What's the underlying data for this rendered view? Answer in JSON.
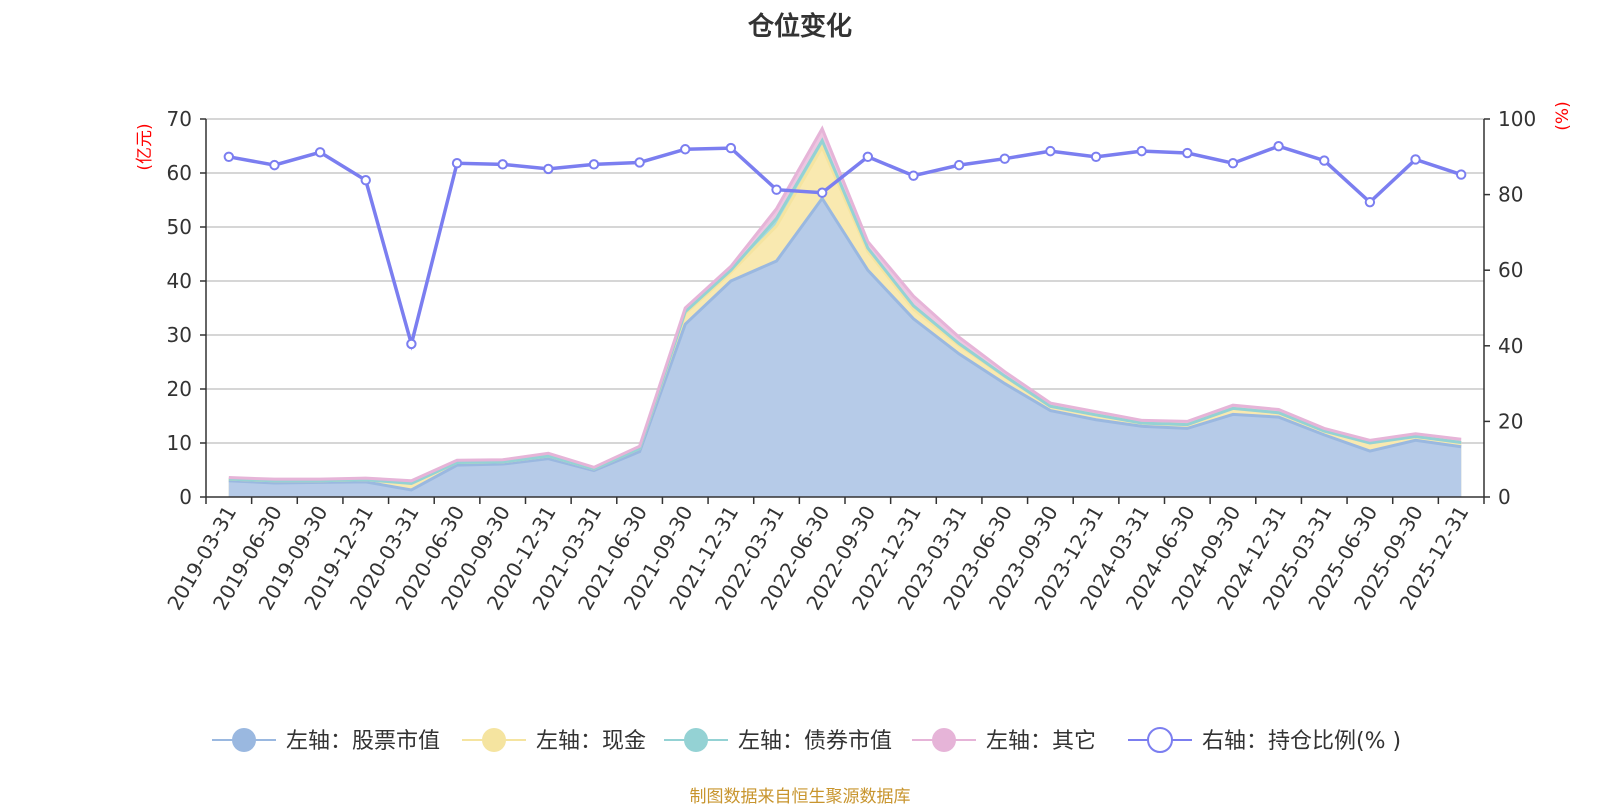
{
  "title": "仓位变化",
  "source_note": "制图数据来自恒生聚源数据库",
  "chart_data": {
    "type": "area",
    "title": "仓位变化",
    "left_axis_unit": "(亿元)",
    "right_axis_unit": "(%)",
    "left_ylim": [
      0,
      70
    ],
    "left_ticks": [
      0,
      10,
      20,
      30,
      40,
      50,
      60,
      70
    ],
    "right_ylim": [
      0,
      100
    ],
    "right_ticks": [
      0,
      20,
      40,
      60,
      80,
      100
    ],
    "grid": true,
    "legend_position": "bottom",
    "categories": [
      "2019-03-31",
      "2019-06-30",
      "2019-09-30",
      "2019-12-31",
      "2020-03-31",
      "2020-06-30",
      "2020-09-30",
      "2020-12-31",
      "2021-03-31",
      "2021-06-30",
      "2021-09-30",
      "2021-12-31",
      "2022-03-31",
      "2022-06-30",
      "2022-09-30",
      "2022-12-31",
      "2023-03-31",
      "2023-06-30",
      "2023-09-30",
      "2023-12-31",
      "2024-03-31",
      "2024-06-30",
      "2024-09-30",
      "2024-12-31",
      "2025-03-31",
      "2025-06-30",
      "2025-09-30",
      "2025-12-31"
    ],
    "series": [
      {
        "name": "左轴：股票市值",
        "axis": "left",
        "color": "#9ab8e0",
        "fill": "#b6cbe8",
        "values": [
          3.0,
          2.6,
          2.7,
          2.8,
          1.3,
          5.9,
          6.1,
          7.1,
          4.9,
          8.4,
          32.0,
          40.0,
          43.7,
          55.3,
          42.0,
          33.0,
          26.5,
          21.0,
          16.0,
          14.3,
          13.1,
          12.7,
          15.3,
          14.8,
          11.5,
          8.5,
          10.5,
          9.3
        ]
      },
      {
        "name": "左轴：现金",
        "axis": "left",
        "color": "#f5e4a0",
        "fill": "#f9e9b0",
        "values": [
          0.3,
          0.4,
          0.3,
          0.4,
          1.2,
          0.5,
          0.4,
          0.5,
          0.3,
          0.6,
          2.0,
          1.6,
          6.5,
          9.5,
          3.5,
          1.8,
          1.6,
          1.3,
          0.8,
          0.9,
          0.6,
          0.7,
          1.1,
          0.8,
          0.7,
          1.5,
          0.7,
          0.8
        ]
      },
      {
        "name": "左轴：债券市值",
        "axis": "left",
        "color": "#94d2d4",
        "fill": "#a8dcdd",
        "values": [
          0.0,
          0.0,
          0.0,
          0.0,
          0.0,
          0.0,
          0.0,
          0.0,
          0.0,
          0.0,
          0.3,
          0.4,
          1.4,
          1.2,
          0.6,
          0.6,
          0.3,
          0.1,
          0.0,
          0.0,
          0.0,
          0.0,
          0.0,
          0.0,
          0.0,
          0.0,
          0.0,
          0.0
        ]
      },
      {
        "name": "左轴：其它",
        "axis": "left",
        "color": "#e6b4d8",
        "fill": "#edc6e1",
        "values": [
          0.3,
          0.3,
          0.3,
          0.3,
          0.5,
          0.4,
          0.4,
          0.5,
          0.3,
          0.4,
          0.7,
          0.7,
          1.8,
          2.2,
          1.2,
          1.8,
          1.2,
          0.8,
          0.6,
          0.6,
          0.5,
          0.6,
          0.6,
          0.6,
          0.5,
          0.5,
          0.5,
          0.6
        ]
      },
      {
        "name": "右轴：持仓比例(% )",
        "axis": "right",
        "color": "#7b7ef0",
        "values": [
          90.0,
          87.8,
          91.2,
          83.8,
          40.5,
          88.3,
          88.0,
          86.8,
          88.0,
          88.5,
          92.0,
          92.3,
          81.3,
          80.5,
          90.0,
          85.0,
          87.8,
          89.5,
          91.5,
          90.0,
          91.5,
          91.0,
          88.3,
          92.8,
          89.0,
          78.0,
          89.3,
          85.3
        ]
      }
    ]
  }
}
